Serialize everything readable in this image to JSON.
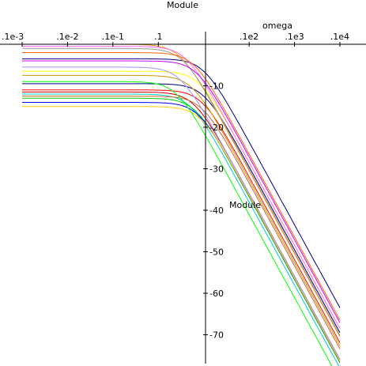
{
  "chart_data": {
    "type": "line",
    "title": "Module",
    "xlabel": "omega",
    "ylabel": "Module",
    "x_scale": "log",
    "xlim": [
      0.001,
      10000
    ],
    "ylim": [
      -76,
      3
    ],
    "x_ticks": [
      {
        "value": 0.001,
        "label": ".1e-3"
      },
      {
        "value": 0.01,
        "label": ".1e-2"
      },
      {
        "value": 0.1,
        "label": ".1e-1"
      },
      {
        "value": 1,
        "label": ".1"
      },
      {
        "value": 100,
        "label": ".1e2"
      },
      {
        "value": 1000,
        "label": ".1e3"
      },
      {
        "value": 10000,
        "label": ".1e4"
      }
    ],
    "y_ticks": [
      {
        "value": -10,
        "label": "-10"
      },
      {
        "value": -20,
        "label": "-20"
      },
      {
        "value": -30,
        "label": "-30"
      },
      {
        "value": -40,
        "label": "-40"
      },
      {
        "value": -50,
        "label": "-50"
      },
      {
        "value": -60,
        "label": "-60"
      },
      {
        "value": -70,
        "label": "-70"
      }
    ],
    "grid": false,
    "legend": "none",
    "series": [
      {
        "color": "#00007f",
        "gain_db": -3.5,
        "corner": 10,
        "slope": -20
      },
      {
        "color": "#ffff00",
        "gain_db": -6.5,
        "corner": 8,
        "slope": -20
      },
      {
        "color": "#000080",
        "gain_db": -9.5,
        "corner": 10,
        "slope": -20
      },
      {
        "color": "#ff0000",
        "gain_db": -11,
        "corner": 9,
        "slope": -20
      },
      {
        "color": "#cc0000",
        "gain_db": -11.5,
        "corner": 6,
        "slope": -20
      },
      {
        "color": "#00cccc",
        "gain_db": -12,
        "corner": 5,
        "slope": -20
      },
      {
        "color": "#cc6633",
        "gain_db": -12.5,
        "corner": 9,
        "slope": -20
      },
      {
        "color": "#ff9900",
        "gain_db": 0,
        "corner": 3,
        "slope": -20
      },
      {
        "color": "#ff66ff",
        "gain_db": -0.5,
        "corner": 4,
        "slope": -20
      },
      {
        "color": "#999999",
        "gain_db": -1,
        "corner": 3.5,
        "slope": -20
      },
      {
        "color": "#ff6600",
        "gain_db": -2,
        "corner": 6,
        "slope": -20
      },
      {
        "color": "#cc00ff",
        "gain_db": -4,
        "corner": 7,
        "slope": -20
      },
      {
        "color": "#00cc00",
        "gain_db": -13,
        "corner": 6.5,
        "slope": -20
      },
      {
        "color": "#0000ff",
        "gain_db": -14,
        "corner": 7.5,
        "slope": -20
      },
      {
        "color": "#ffcc00",
        "gain_db": -15,
        "corner": 8.5,
        "slope": -20
      },
      {
        "color": "#00ff00",
        "gain_db": -9,
        "corner": 2.5,
        "slope": -20
      },
      {
        "color": "#cc9900",
        "gain_db": -7.5,
        "corner": 5.5,
        "slope": -20
      },
      {
        "color": "#9999ff",
        "gain_db": -5.5,
        "corner": 3,
        "slope": -20
      }
    ]
  }
}
